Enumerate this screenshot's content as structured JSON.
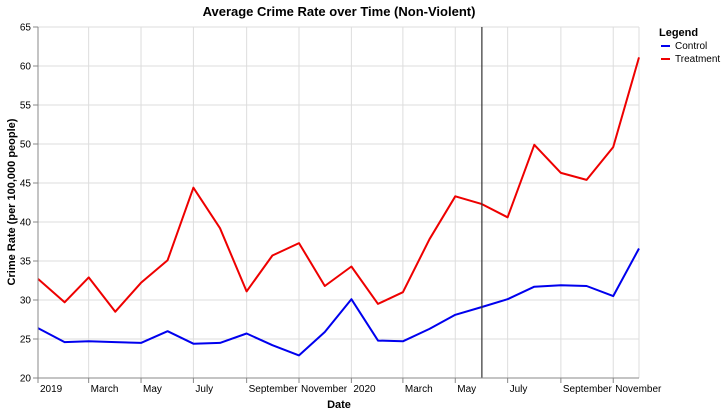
{
  "chart_data": {
    "type": "line",
    "title": "Average Crime Rate over Time (Non-Violent)",
    "xlabel": "Date",
    "ylabel": "Crime Rate (per 100,000 people)",
    "ylim": [
      20,
      65
    ],
    "y_ticks": [
      20,
      25,
      30,
      35,
      40,
      45,
      50,
      55,
      60,
      65
    ],
    "x_domain": [
      "2019-01-01",
      "2020-12-01"
    ],
    "x_ticks": [
      {
        "date": "2019-01-01",
        "label": "2019"
      },
      {
        "date": "2019-03-01",
        "label": "March"
      },
      {
        "date": "2019-05-01",
        "label": "May"
      },
      {
        "date": "2019-07-01",
        "label": "July"
      },
      {
        "date": "2019-09-01",
        "label": "September"
      },
      {
        "date": "2019-11-01",
        "label": "November"
      },
      {
        "date": "2020-01-01",
        "label": "2020"
      },
      {
        "date": "2020-03-01",
        "label": "March"
      },
      {
        "date": "2020-05-01",
        "label": "May"
      },
      {
        "date": "2020-07-01",
        "label": "July"
      },
      {
        "date": "2020-09-01",
        "label": "September"
      },
      {
        "date": "2020-11-01",
        "label": "November"
      }
    ],
    "grid": true,
    "reference_line": {
      "date": "2020-06-01"
    },
    "legend": {
      "title": "Legend",
      "position": "right"
    },
    "x": [
      "2019-01-01",
      "2019-02-01",
      "2019-03-01",
      "2019-04-01",
      "2019-05-01",
      "2019-06-01",
      "2019-07-01",
      "2019-08-01",
      "2019-09-01",
      "2019-10-01",
      "2019-11-01",
      "2019-12-01",
      "2020-01-01",
      "2020-02-01",
      "2020-03-01",
      "2020-04-01",
      "2020-05-01",
      "2020-06-01",
      "2020-07-01",
      "2020-08-01",
      "2020-09-01",
      "2020-10-01",
      "2020-11-01",
      "2020-12-01"
    ],
    "series": [
      {
        "name": "Control",
        "color": "#0000ee",
        "values": [
          26.4,
          24.6,
          24.7,
          24.6,
          24.5,
          26.0,
          24.4,
          24.5,
          25.7,
          24.2,
          22.9,
          25.9,
          30.1,
          24.8,
          24.7,
          26.3,
          28.1,
          29.1,
          30.1,
          31.7,
          31.9,
          31.8,
          30.5,
          36.6
        ]
      },
      {
        "name": "Treatment",
        "color": "#ee0000",
        "values": [
          32.7,
          29.7,
          32.9,
          28.5,
          32.2,
          35.1,
          44.4,
          39.2,
          31.1,
          35.7,
          37.3,
          31.8,
          34.3,
          29.5,
          31.0,
          37.8,
          43.3,
          42.3,
          40.6,
          49.9,
          46.3,
          45.4,
          49.6,
          61.1
        ]
      }
    ]
  }
}
